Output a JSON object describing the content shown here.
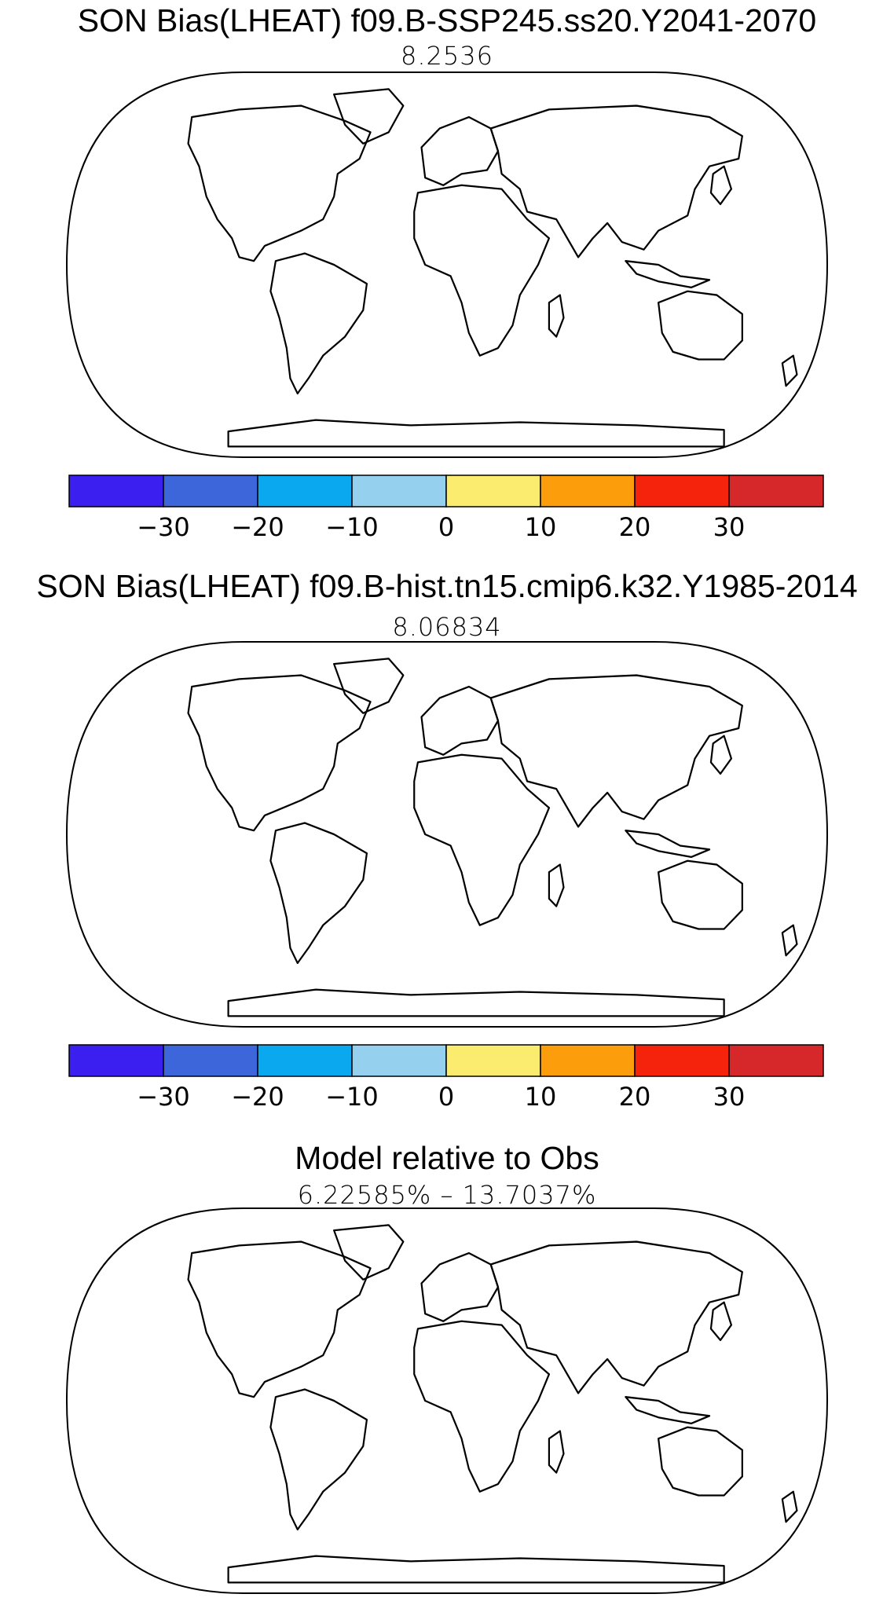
{
  "panels": [
    {
      "title": "SON Bias(LHEAT) f09.B-SSP245.ss20.Y2041-2070",
      "subtitle": "8.2536"
    },
    {
      "title": "SON Bias(LHEAT) f09.B-hist.tn15.cmip6.k32.Y1985-2014",
      "subtitle": "8.06834"
    },
    {
      "title": "Model relative to Obs",
      "subtitle": "6.22585% – 13.7037%"
    }
  ],
  "colorbar": {
    "tick_labels": [
      "−30",
      "−20",
      "−10",
      "0",
      "10",
      "20",
      "30"
    ],
    "colors": [
      "#3a1ff0",
      "#3d66db",
      "#0aa8ef",
      "#95d1ef",
      "#fbec70",
      "#fc9e0b",
      "#f5220c",
      "#d6282a"
    ]
  },
  "diff_colors": {
    "better": "#22e022",
    "worse": "#ee1111"
  }
}
